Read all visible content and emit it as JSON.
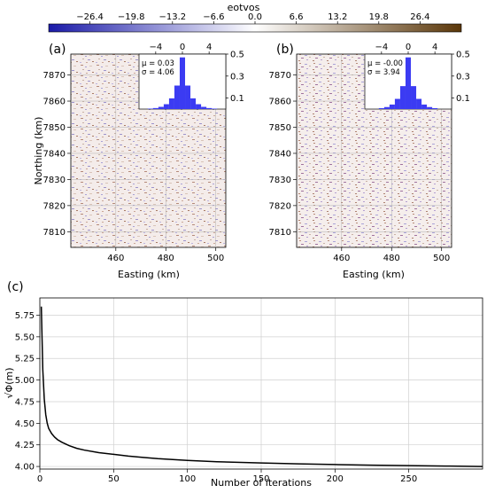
{
  "colorbar": {
    "label": "eotvos",
    "ticks": [
      "−26.4",
      "−19.8",
      "−13.2",
      "−6.6",
      "0.0",
      "6.6",
      "13.2",
      "19.8",
      "26.4"
    ],
    "tick_values": [
      -26.4,
      -19.8,
      -13.2,
      -6.6,
      0.0,
      6.6,
      13.2,
      19.8,
      26.4
    ],
    "range": [
      -33,
      33
    ],
    "colors": {
      "negative": "#1a1aa8",
      "zero": "#ffffff",
      "positive": "#5a3608"
    }
  },
  "panel_a": {
    "letter": "(a)",
    "xlabel": "Easting (km)",
    "ylabel": "Northing (km)",
    "xticks": [
      "460",
      "480",
      "500"
    ],
    "xtick_values": [
      460,
      480,
      500
    ],
    "yticks": [
      "7870",
      "7860",
      "7850",
      "7840",
      "7830",
      "7820",
      "7810"
    ],
    "ytick_values": [
      7870,
      7860,
      7850,
      7840,
      7830,
      7820,
      7810
    ],
    "xlim": [
      442,
      504
    ],
    "ylim": [
      7804,
      7878
    ],
    "inset": {
      "mu": "μ = 0.03",
      "sigma": "σ = 4.06",
      "xticks": [
        "−4",
        "0",
        "4"
      ],
      "xtick_values": [
        -4,
        0,
        4
      ],
      "yticks": [
        "0.5",
        "0.3",
        "0.1"
      ],
      "ytick_values": [
        0.5,
        0.3,
        0.1
      ],
      "xlim": [
        -6.5,
        6.5
      ],
      "ylim": [
        0,
        0.5
      ],
      "bar_color": "#3b3bf2"
    }
  },
  "panel_b": {
    "letter": "(b)",
    "xlabel": "Easting (km)",
    "xticks": [
      "460",
      "480",
      "500"
    ],
    "xtick_values": [
      460,
      480,
      500
    ],
    "yticks": [
      "7870",
      "7860",
      "7850",
      "7840",
      "7830",
      "7820",
      "7810"
    ],
    "ytick_values": [
      7870,
      7860,
      7850,
      7840,
      7830,
      7820,
      7810
    ],
    "xlim": [
      442,
      504
    ],
    "ylim": [
      7804,
      7878
    ],
    "inset": {
      "mu": "μ = -0.00",
      "sigma": "σ = 3.94",
      "xticks": [
        "−4",
        "0",
        "4"
      ],
      "xtick_values": [
        -4,
        0,
        4
      ],
      "yticks": [
        "0.5",
        "0.3",
        "0.1"
      ],
      "ytick_values": [
        0.5,
        0.3,
        0.1
      ],
      "xlim": [
        -6.5,
        6.5
      ],
      "ylim": [
        0,
        0.5
      ],
      "bar_color": "#3b3bf2"
    }
  },
  "chart_data": {
    "type": "line",
    "letter": "(c)",
    "xlabel": "Number of iterations",
    "ylabel": "√Φ(m)",
    "xlim": [
      0,
      300
    ],
    "ylim": [
      3.97,
      5.95
    ],
    "xticks": [
      "0",
      "50",
      "100",
      "150",
      "200",
      "250"
    ],
    "xtick_values": [
      0,
      50,
      100,
      150,
      200,
      250
    ],
    "yticks": [
      "5.75",
      "5.50",
      "5.25",
      "5.00",
      "4.75",
      "4.50",
      "4.25",
      "4.00"
    ],
    "ytick_values": [
      5.75,
      5.5,
      5.25,
      5.0,
      4.75,
      4.5,
      4.25,
      4.0
    ],
    "grid": true,
    "line_color": "#000000",
    "x": [
      1,
      2,
      3,
      4,
      5,
      6,
      8,
      10,
      12,
      15,
      20,
      25,
      30,
      40,
      50,
      60,
      70,
      80,
      100,
      120,
      150,
      175,
      200,
      225,
      250,
      275,
      300
    ],
    "y": [
      5.85,
      5.12,
      4.78,
      4.6,
      4.5,
      4.44,
      4.38,
      4.34,
      4.31,
      4.28,
      4.24,
      4.21,
      4.19,
      4.16,
      4.14,
      4.12,
      4.105,
      4.09,
      4.07,
      4.055,
      4.04,
      4.03,
      4.022,
      4.015,
      4.01,
      4.005,
      4.0
    ]
  }
}
